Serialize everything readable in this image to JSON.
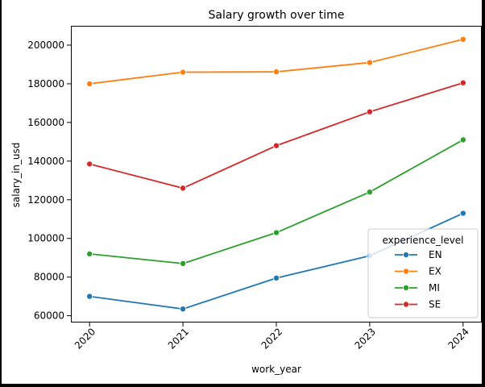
{
  "chart_data": {
    "type": "line",
    "title": "Salary growth over time",
    "xlabel": "work_year",
    "ylabel": "salary_in_usd",
    "x": [
      2020,
      2021,
      2022,
      2023,
      2024
    ],
    "x_tick_labels": [
      "2020",
      "2021",
      "2022",
      "2023",
      "2024"
    ],
    "y_ticks": [
      60000,
      80000,
      100000,
      120000,
      140000,
      160000,
      180000,
      200000
    ],
    "y_tick_labels": [
      "60000",
      "80000",
      "100000",
      "120000",
      "140000",
      "160000",
      "180000",
      "200000"
    ],
    "xlim": [
      2019.8,
      2024.2
    ],
    "ylim": [
      56500,
      210000
    ],
    "grid": false,
    "marker": "circle",
    "legend": {
      "title": "experience_level",
      "position": "lower-right"
    },
    "series": [
      {
        "name": "EN",
        "color": "#1f77b4",
        "values": [
          70000,
          63500,
          79500,
          91000,
          113000
        ]
      },
      {
        "name": "EX",
        "color": "#ff7f0e",
        "values": [
          180000,
          186000,
          186200,
          191000,
          203000
        ]
      },
      {
        "name": "MI",
        "color": "#2ca02c",
        "values": [
          92000,
          87000,
          103000,
          124000,
          151000
        ]
      },
      {
        "name": "SE",
        "color": "#d62728",
        "values": [
          138500,
          126000,
          148000,
          165500,
          180500
        ]
      }
    ]
  }
}
